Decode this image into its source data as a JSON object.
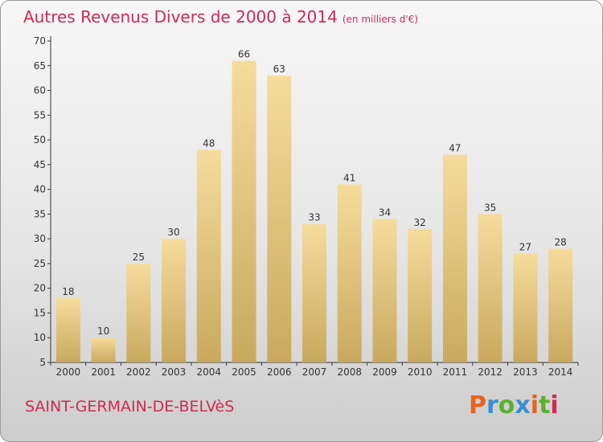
{
  "header": {
    "title": "Autres Revenus Divers de 2000 à 2014",
    "unit": "(en milliers d'€)"
  },
  "footer": {
    "commune": "SAINT-GERMAIN-DE-BELVèS"
  },
  "logo": {
    "text": "Proxiti",
    "letter_colors": [
      "#e8641e",
      "#3b8fd0",
      "#5cb030",
      "#3b8fd0",
      "#e8641e",
      "#5cb030",
      "#d02a52"
    ]
  },
  "colors": {
    "title": "#d02a52",
    "bar_light": "#f6dc9c",
    "bar_dark": "#c8a95e"
  },
  "chart_data": {
    "type": "bar",
    "categories": [
      "2000",
      "2001",
      "2002",
      "2003",
      "2004",
      "2005",
      "2006",
      "2007",
      "2008",
      "2009",
      "2010",
      "2011",
      "2012",
      "2013",
      "2014"
    ],
    "values": [
      18,
      10,
      25,
      30,
      48,
      66,
      63,
      33,
      41,
      34,
      32,
      47,
      35,
      27,
      28
    ],
    "title": "Autres Revenus Divers de 2000 à 2014",
    "xlabel": "",
    "ylabel": "",
    "ylim": [
      5,
      70
    ],
    "yticks": [
      5,
      10,
      15,
      20,
      25,
      30,
      35,
      40,
      45,
      50,
      55,
      60,
      65,
      70
    ],
    "grid": false,
    "legend": "none"
  }
}
